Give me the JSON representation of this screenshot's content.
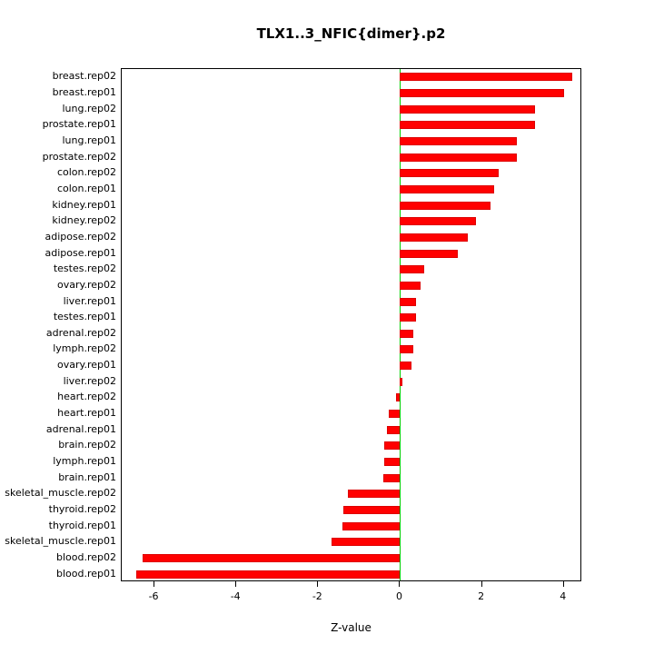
{
  "chart_data": {
    "type": "bar",
    "orientation": "horizontal",
    "title": "TLX1..3_NFIC{dimer}.p2",
    "xlabel": "Z-value",
    "ylabel": "",
    "categories": [
      "breast.rep02",
      "breast.rep01",
      "lung.rep02",
      "prostate.rep01",
      "lung.rep01",
      "prostate.rep02",
      "colon.rep02",
      "colon.rep01",
      "kidney.rep01",
      "kidney.rep02",
      "adipose.rep02",
      "adipose.rep01",
      "testes.rep02",
      "ovary.rep02",
      "liver.rep01",
      "testes.rep01",
      "adrenal.rep02",
      "lymph.rep02",
      "ovary.rep01",
      "liver.rep02",
      "heart.rep02",
      "heart.rep01",
      "adrenal.rep01",
      "brain.rep02",
      "lymph.rep01",
      "brain.rep01",
      "skeletal_muscle.rep02",
      "thyroid.rep02",
      "thyroid.rep01",
      "skeletal_muscle.rep01",
      "blood.rep02",
      "blood.rep01"
    ],
    "values": [
      4.2,
      4.0,
      3.3,
      3.3,
      2.85,
      2.85,
      2.4,
      2.3,
      2.2,
      1.85,
      1.65,
      1.4,
      0.6,
      0.5,
      0.38,
      0.38,
      0.33,
      0.33,
      0.27,
      0.05,
      -0.1,
      -0.27,
      -0.33,
      -0.38,
      -0.38,
      -0.42,
      -1.27,
      -1.38,
      -1.4,
      -1.67,
      -6.3,
      -6.45
    ],
    "xlim": [
      -6.8,
      4.45
    ],
    "x_ticks": [
      -6,
      -4,
      -2,
      0,
      2,
      4
    ],
    "grid": false,
    "legend": null,
    "bar_color": "#FF0000",
    "bar_border_color": "#DD0000",
    "zero_line_color": "#00CC00",
    "text_color": "#000000"
  }
}
